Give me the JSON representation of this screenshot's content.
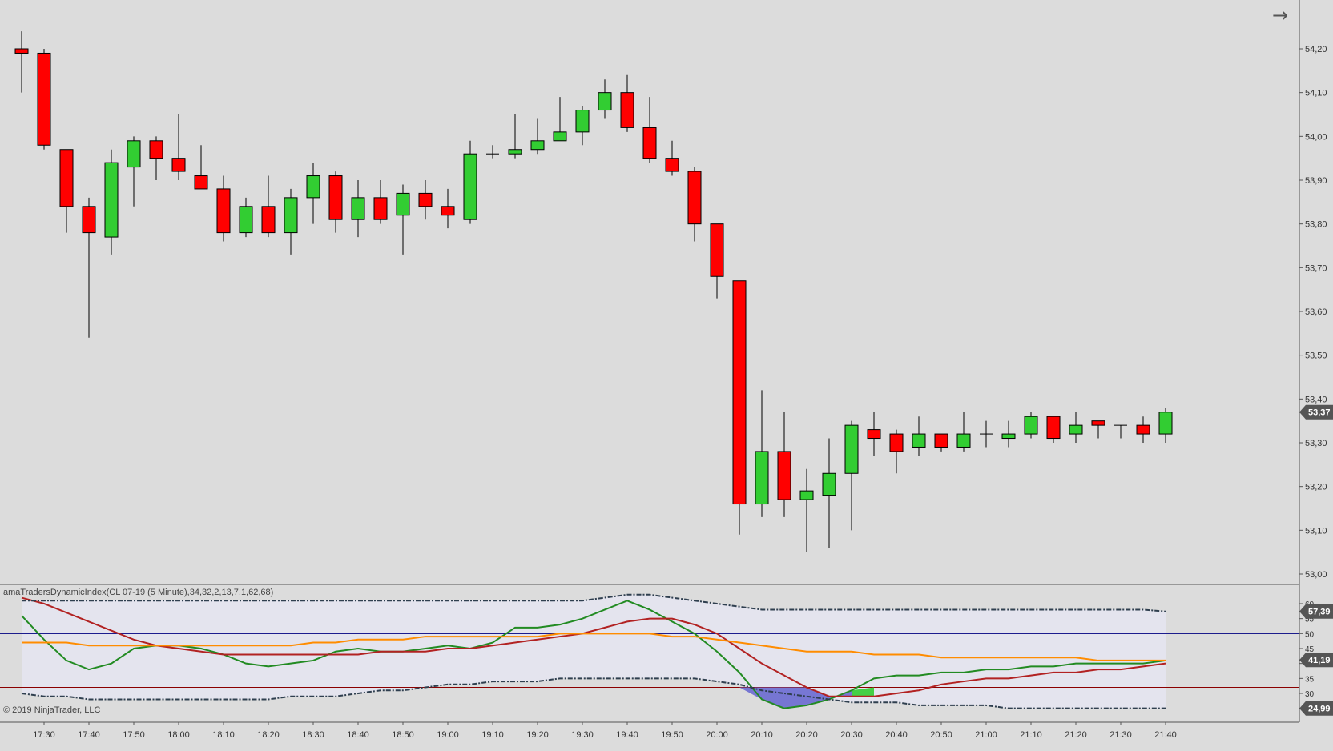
{
  "toolbar": {
    "nav_icon": "arrow-right-icon",
    "nav_glyph": "→"
  },
  "indicator_title": "amaTradersDynamicIndex(CL 07-19 (5 Minute),34,32,2,13,7,1,62,68)",
  "copyright": "© 2019 NinjaTrader, LLC",
  "colors": {
    "background": "#dcdcdc",
    "up_candle": "#32cd32",
    "down_candle": "#ff0000",
    "indicator_band_fill": "#e4e4ee",
    "price_line": "#228b22",
    "signal_line": "#b22222",
    "base_line": "#ff8c00",
    "band_line": "#2f3f4f",
    "level_50": "#000080",
    "level_32": "#8b0000",
    "fill_green": "#32cd32",
    "fill_blue": "#6a6ad0"
  },
  "chart_data": [
    {
      "type": "candlestick",
      "title": "",
      "x_ticks": [
        "17:30",
        "17:40",
        "17:50",
        "18:00",
        "18:10",
        "18:20",
        "18:30",
        "18:40",
        "18:50",
        "19:00",
        "19:10",
        "19:20",
        "19:30",
        "19:40",
        "19:50",
        "20:00",
        "20:10",
        "20:20",
        "20:30",
        "20:40",
        "20:50",
        "21:00",
        "21:10",
        "21:20",
        "21:30",
        "21:40"
      ],
      "y_ticks": [
        "54,20",
        "54,10",
        "54,00",
        "53,90",
        "53,80",
        "53,70",
        "53,60",
        "53,50",
        "53,40",
        "53,30",
        "53,20",
        "53,10",
        "53,00"
      ],
      "ylim": [
        52.98,
        54.28
      ],
      "last_price_label": "53,37",
      "last_price": 53.37,
      "candles": [
        {
          "o": 54.2,
          "h": 54.24,
          "l": 54.1,
          "c": 54.19
        },
        {
          "o": 54.19,
          "h": 54.2,
          "l": 53.97,
          "c": 53.98
        },
        {
          "o": 53.97,
          "h": 53.97,
          "l": 53.78,
          "c": 53.84
        },
        {
          "o": 53.84,
          "h": 53.86,
          "l": 53.54,
          "c": 53.78
        },
        {
          "o": 53.77,
          "h": 53.97,
          "l": 53.73,
          "c": 53.94
        },
        {
          "o": 53.93,
          "h": 54.0,
          "l": 53.84,
          "c": 53.99
        },
        {
          "o": 53.99,
          "h": 54.0,
          "l": 53.9,
          "c": 53.95
        },
        {
          "o": 53.95,
          "h": 54.05,
          "l": 53.9,
          "c": 53.92
        },
        {
          "o": 53.91,
          "h": 53.98,
          "l": 53.88,
          "c": 53.88
        },
        {
          "o": 53.88,
          "h": 53.91,
          "l": 53.76,
          "c": 53.78
        },
        {
          "o": 53.78,
          "h": 53.86,
          "l": 53.77,
          "c": 53.84
        },
        {
          "o": 53.84,
          "h": 53.91,
          "l": 53.77,
          "c": 53.78
        },
        {
          "o": 53.78,
          "h": 53.88,
          "l": 53.73,
          "c": 53.86
        },
        {
          "o": 53.86,
          "h": 53.94,
          "l": 53.8,
          "c": 53.91
        },
        {
          "o": 53.91,
          "h": 53.92,
          "l": 53.78,
          "c": 53.81
        },
        {
          "o": 53.81,
          "h": 53.9,
          "l": 53.77,
          "c": 53.86
        },
        {
          "o": 53.86,
          "h": 53.9,
          "l": 53.8,
          "c": 53.81
        },
        {
          "o": 53.82,
          "h": 53.89,
          "l": 53.73,
          "c": 53.87
        },
        {
          "o": 53.87,
          "h": 53.9,
          "l": 53.81,
          "c": 53.84
        },
        {
          "o": 53.84,
          "h": 53.88,
          "l": 53.79,
          "c": 53.82
        },
        {
          "o": 53.81,
          "h": 53.99,
          "l": 53.8,
          "c": 53.96
        },
        {
          "o": 53.96,
          "h": 53.98,
          "l": 53.95,
          "c": 53.96
        },
        {
          "o": 53.96,
          "h": 54.05,
          "l": 53.95,
          "c": 53.97
        },
        {
          "o": 53.97,
          "h": 54.04,
          "l": 53.96,
          "c": 53.99
        },
        {
          "o": 53.99,
          "h": 54.09,
          "l": 53.99,
          "c": 54.01
        },
        {
          "o": 54.01,
          "h": 54.07,
          "l": 53.98,
          "c": 54.06
        },
        {
          "o": 54.06,
          "h": 54.13,
          "l": 54.04,
          "c": 54.1
        },
        {
          "o": 54.1,
          "h": 54.14,
          "l": 54.01,
          "c": 54.02
        },
        {
          "o": 54.02,
          "h": 54.09,
          "l": 53.94,
          "c": 53.95
        },
        {
          "o": 53.95,
          "h": 53.99,
          "l": 53.91,
          "c": 53.92
        },
        {
          "o": 53.92,
          "h": 53.93,
          "l": 53.76,
          "c": 53.8
        },
        {
          "o": 53.8,
          "h": 53.8,
          "l": 53.63,
          "c": 53.68
        },
        {
          "o": 53.67,
          "h": 53.67,
          "l": 53.09,
          "c": 53.16
        },
        {
          "o": 53.16,
          "h": 53.42,
          "l": 53.13,
          "c": 53.28
        },
        {
          "o": 53.28,
          "h": 53.37,
          "l": 53.13,
          "c": 53.17
        },
        {
          "o": 53.17,
          "h": 53.24,
          "l": 53.05,
          "c": 53.19
        },
        {
          "o": 53.18,
          "h": 53.31,
          "l": 53.06,
          "c": 53.23
        },
        {
          "o": 53.23,
          "h": 53.35,
          "l": 53.1,
          "c": 53.34
        },
        {
          "o": 53.33,
          "h": 53.37,
          "l": 53.27,
          "c": 53.31
        },
        {
          "o": 53.32,
          "h": 53.33,
          "l": 53.23,
          "c": 53.28
        },
        {
          "o": 53.29,
          "h": 53.36,
          "l": 53.27,
          "c": 53.32
        },
        {
          "o": 53.32,
          "h": 53.32,
          "l": 53.28,
          "c": 53.29
        },
        {
          "o": 53.29,
          "h": 53.37,
          "l": 53.28,
          "c": 53.32
        },
        {
          "o": 53.32,
          "h": 53.35,
          "l": 53.29,
          "c": 53.32
        },
        {
          "o": 53.31,
          "h": 53.35,
          "l": 53.29,
          "c": 53.32
        },
        {
          "o": 53.32,
          "h": 53.37,
          "l": 53.31,
          "c": 53.36
        },
        {
          "o": 53.36,
          "h": 53.36,
          "l": 53.3,
          "c": 53.31
        },
        {
          "o": 53.32,
          "h": 53.37,
          "l": 53.3,
          "c": 53.34
        },
        {
          "o": 53.35,
          "h": 53.35,
          "l": 53.31,
          "c": 53.34
        },
        {
          "o": 53.34,
          "h": 53.34,
          "l": 53.31,
          "c": 53.34
        },
        {
          "o": 53.34,
          "h": 53.36,
          "l": 53.3,
          "c": 53.32
        },
        {
          "o": 53.32,
          "h": 53.38,
          "l": 53.3,
          "c": 53.37
        }
      ]
    },
    {
      "type": "line",
      "title": "amaTradersDynamicIndex(CL 07-19 (5 Minute),34,32,2,13,7,1,62,68)",
      "y_ticks": [
        "60",
        "55",
        "50",
        "45",
        "40",
        "35",
        "30"
      ],
      "ylim": [
        22,
        63
      ],
      "levels": [
        50,
        32
      ],
      "value_labels": [
        {
          "text": "57,39",
          "value": 57.39
        },
        {
          "text": "41,19",
          "value": 41.19
        },
        {
          "text": "24,99",
          "value": 24.99
        }
      ],
      "series": [
        {
          "role": "rsi_price_line",
          "values": [
            56,
            48,
            41,
            38,
            40,
            45,
            46,
            46,
            45,
            43,
            40,
            39,
            40,
            41,
            44,
            45,
            44,
            44,
            45,
            46,
            45,
            47,
            52,
            52,
            53,
            55,
            58,
            61,
            58,
            54,
            50,
            44,
            37,
            28,
            25,
            26,
            28,
            31,
            35,
            36,
            36,
            37,
            37,
            38,
            38,
            39,
            39,
            40,
            40,
            40,
            40,
            41
          ]
        },
        {
          "role": "signal_line",
          "values": [
            62,
            60,
            57,
            54,
            51,
            48,
            46,
            45,
            44,
            43,
            43,
            43,
            43,
            43,
            43,
            43,
            44,
            44,
            44,
            45,
            45,
            46,
            47,
            48,
            49,
            50,
            52,
            54,
            55,
            55,
            53,
            50,
            45,
            40,
            36,
            32,
            29,
            29,
            29,
            30,
            31,
            33,
            34,
            35,
            35,
            36,
            37,
            37,
            38,
            38,
            39,
            40
          ]
        },
        {
          "role": "market_base_line",
          "values": [
            47,
            47,
            47,
            46,
            46,
            46,
            46,
            46,
            46,
            46,
            46,
            46,
            46,
            47,
            47,
            48,
            48,
            48,
            49,
            49,
            49,
            49,
            49,
            49,
            50,
            50,
            50,
            50,
            50,
            49,
            49,
            48,
            47,
            46,
            45,
            44,
            44,
            44,
            43,
            43,
            43,
            42,
            42,
            42,
            42,
            42,
            42,
            42,
            41,
            41,
            41,
            41
          ]
        },
        {
          "role": "upper_volatility_band",
          "values": [
            61,
            61,
            61,
            61,
            61,
            61,
            61,
            61,
            61,
            61,
            61,
            61,
            61,
            61,
            61,
            61,
            61,
            61,
            61,
            61,
            61,
            61,
            61,
            61,
            61,
            61,
            62,
            63,
            63,
            62,
            61,
            60,
            59,
            58,
            58,
            58,
            58,
            58,
            58,
            58,
            58,
            58,
            58,
            58,
            58,
            58,
            58,
            58,
            58,
            58,
            58,
            57.4
          ]
        },
        {
          "role": "lower_volatility_band",
          "values": [
            30,
            29,
            29,
            28,
            28,
            28,
            28,
            28,
            28,
            28,
            28,
            28,
            29,
            29,
            29,
            30,
            31,
            31,
            32,
            33,
            33,
            34,
            34,
            34,
            35,
            35,
            35,
            35,
            35,
            35,
            35,
            34,
            33,
            31,
            30,
            29,
            28,
            27,
            27,
            27,
            26,
            26,
            26,
            26,
            25,
            25,
            25,
            25,
            25,
            25,
            25,
            25
          ]
        }
      ]
    }
  ]
}
